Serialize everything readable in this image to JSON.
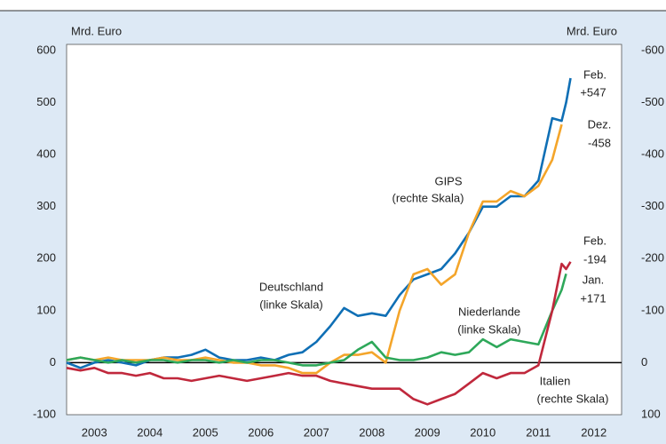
{
  "chart_data": {
    "type": "line",
    "y_label": "Mrd. Euro",
    "y2_label": "Mrd. Euro",
    "x": [
      2003.0,
      2003.25,
      2003.5,
      2003.75,
      2004.0,
      2004.25,
      2004.5,
      2004.75,
      2005.0,
      2005.25,
      2005.5,
      2005.75,
      2006.0,
      2006.25,
      2006.5,
      2006.75,
      2007.0,
      2007.25,
      2007.5,
      2007.75,
      2008.0,
      2008.25,
      2008.5,
      2008.75,
      2009.0,
      2009.25,
      2009.5,
      2009.75,
      2010.0,
      2010.25,
      2010.5,
      2010.75,
      2011.0,
      2011.25,
      2011.5,
      2011.75,
      2011.92,
      2012.0,
      2012.08
    ],
    "xlim": [
      2003,
      2013
    ],
    "xticks": [
      {
        "value": 2003.5,
        "label": "2003"
      },
      {
        "value": 2004.5,
        "label": "2004"
      },
      {
        "value": 2005.5,
        "label": "2005"
      },
      {
        "value": 2006.5,
        "label": "2006"
      },
      {
        "value": 2007.5,
        "label": "2007"
      },
      {
        "value": 2008.5,
        "label": "2008"
      },
      {
        "value": 2009.5,
        "label": "2009"
      },
      {
        "value": 2010.5,
        "label": "2010"
      },
      {
        "value": 2011.5,
        "label": "2011"
      },
      {
        "value": 2012.5,
        "label": "2012"
      }
    ],
    "ylim": [
      -100,
      600
    ],
    "yticks": [
      -100,
      0,
      100,
      200,
      300,
      400,
      500,
      600
    ],
    "y2lim": [
      100,
      -600
    ],
    "y2ticks": [
      100,
      0,
      -100,
      -200,
      -300,
      -400,
      -500,
      -600
    ],
    "grid": false,
    "series": [
      {
        "name": "Deutschland",
        "color": "#0f6fb5",
        "values": [
          0,
          -10,
          0,
          5,
          0,
          -5,
          5,
          10,
          10,
          15,
          25,
          10,
          5,
          5,
          10,
          5,
          15,
          20,
          40,
          70,
          105,
          90,
          95,
          90,
          130,
          160,
          170,
          180,
          210,
          250,
          300,
          300,
          320,
          320,
          350,
          470,
          465,
          500,
          547
        ]
      },
      {
        "name": "GIPS",
        "color": "#f4a52a",
        "axis": "y2",
        "values": [
          -5,
          -10,
          -5,
          -10,
          -5,
          -5,
          -5,
          -10,
          -5,
          -5,
          -10,
          -5,
          0,
          0,
          5,
          5,
          10,
          20,
          20,
          0,
          -15,
          -15,
          -20,
          0,
          -100,
          -170,
          -180,
          -150,
          -170,
          -250,
          -310,
          -310,
          -330,
          -320,
          -340,
          -390,
          -458,
          null,
          null
        ]
      },
      {
        "name": "Niederlande",
        "color": "#2ea85a",
        "values": [
          5,
          10,
          5,
          0,
          5,
          0,
          5,
          5,
          0,
          5,
          5,
          0,
          5,
          0,
          5,
          5,
          0,
          -5,
          -5,
          0,
          5,
          25,
          40,
          10,
          5,
          5,
          10,
          20,
          15,
          20,
          45,
          30,
          45,
          40,
          35,
          100,
          140,
          171,
          null
        ]
      },
      {
        "name": "Italien",
        "color": "#c0283c",
        "axis": "y2",
        "values": [
          10,
          15,
          10,
          20,
          20,
          25,
          20,
          30,
          30,
          35,
          30,
          25,
          30,
          35,
          30,
          25,
          20,
          25,
          25,
          35,
          40,
          45,
          50,
          50,
          50,
          70,
          80,
          70,
          60,
          40,
          20,
          30,
          20,
          20,
          5,
          -100,
          -190,
          -180,
          -194
        ]
      }
    ],
    "annotations": [
      {
        "text": "Feb.",
        "color": "#0f6fb5"
      },
      {
        "text": "+547",
        "color": "#0f6fb5"
      },
      {
        "text": "Dez.",
        "color": "#f4a52a"
      },
      {
        "text": "-458",
        "color": "#f4a52a"
      },
      {
        "text": "(rechte Skala)",
        "color": "#222222"
      },
      {
        "text": "(linke Skala)",
        "color": "#222222"
      },
      {
        "text": "(linke Skala)",
        "color": "#222222"
      },
      {
        "text": "Feb.",
        "color": "#c0283c"
      },
      {
        "text": "-194",
        "color": "#c0283c"
      },
      {
        "text": "Jan.",
        "color": "#2ea85a"
      },
      {
        "text": "+171",
        "color": "#2ea85a"
      },
      {
        "text": "(rechte Skala)",
        "color": "#222222"
      }
    ]
  }
}
